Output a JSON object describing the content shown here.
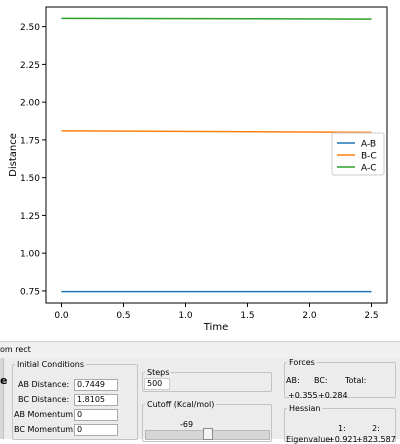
{
  "chart_data": {
    "type": "line",
    "xlabel": "Time",
    "ylabel": "Distance",
    "xlim": [
      -0.125,
      2.625
    ],
    "ylim": [
      0.67,
      2.63
    ],
    "xticks": [
      "0.0",
      "0.5",
      "1.0",
      "1.5",
      "2.0",
      "2.5"
    ],
    "yticks": [
      "0.75",
      "1.00",
      "1.25",
      "1.50",
      "1.75",
      "2.00",
      "2.25",
      "2.50"
    ],
    "legend_position": "center-right",
    "series": [
      {
        "name": "A-B",
        "color": "#1f77b4",
        "x": [
          0.0,
          2.5
        ],
        "y": [
          0.745,
          0.745
        ]
      },
      {
        "name": "B-C",
        "color": "#ff7f0e",
        "x": [
          0.0,
          2.5
        ],
        "y": [
          1.81,
          1.8
        ]
      },
      {
        "name": "A-C",
        "color": "#2ca02c",
        "x": [
          0.0,
          2.5
        ],
        "y": [
          2.555,
          2.55
        ]
      }
    ]
  },
  "status_text": "om rect",
  "left_stub": "e",
  "initial_conditions": {
    "title": "Initial Conditions",
    "ab_distance_label": "AB Distance:",
    "ab_distance_value": "0.7449",
    "bc_distance_label": "BC Distance:",
    "bc_distance_value": "1.8105",
    "ab_momentum_label": "AB Momentum:",
    "ab_momentum_value": "0",
    "bc_momentum_label": "BC Momentum:",
    "bc_momentum_value": "0"
  },
  "steps": {
    "title": "Steps",
    "value": "500"
  },
  "cutoff": {
    "title": "Cutoff (Kcal/mol)",
    "value": "-69",
    "slider_fraction": 0.5
  },
  "forces": {
    "title": "Forces",
    "ab_label": "AB:",
    "bc_label": "BC:",
    "total_label": "Total:",
    "ab_value": "+0.355",
    "bc_value": "+0.284"
  },
  "hessian": {
    "title": "Hessian",
    "col1": "1:",
    "col2": "2:",
    "eigen_label": "Eigenvalue:",
    "eigen1": "+0.921",
    "eigen2": "+823.587"
  }
}
